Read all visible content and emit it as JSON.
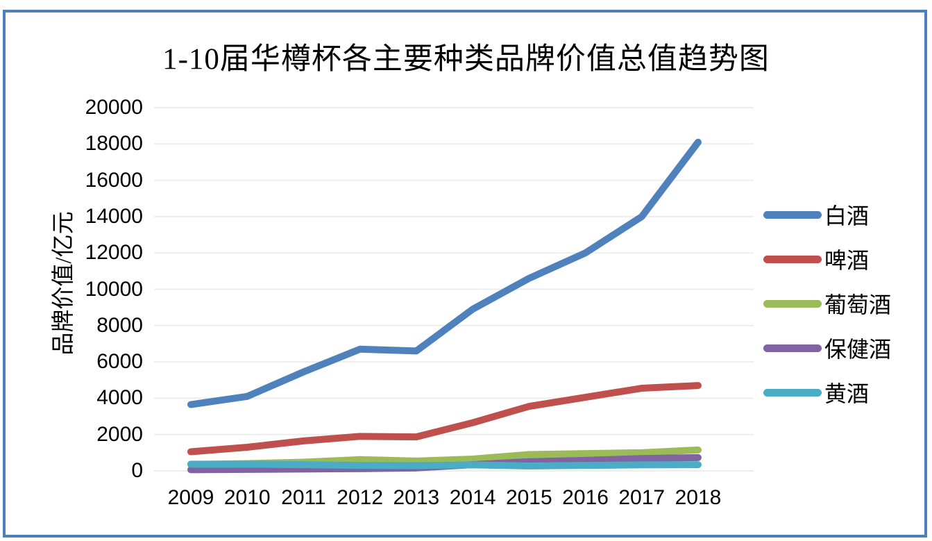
{
  "chart_data": {
    "type": "line",
    "title": "1-10届华樽杯各主要种类品牌价值总值趋势图",
    "ylabel": "品牌价值/亿元",
    "xlabel": "",
    "categories": [
      "2009",
      "2010",
      "2011",
      "2012",
      "2013",
      "2014",
      "2015",
      "2016",
      "2017",
      "2018"
    ],
    "series": [
      {
        "name": "白酒",
        "color": "#4F81BD",
        "values": [
          3650,
          4100,
          5450,
          6700,
          6600,
          8900,
          10600,
          12000,
          14000,
          18100
        ]
      },
      {
        "name": "啤酒",
        "color": "#C0504D",
        "values": [
          1050,
          1300,
          1650,
          1900,
          1870,
          2650,
          3550,
          4050,
          4550,
          4700
        ]
      },
      {
        "name": "葡萄酒",
        "color": "#9BBB59",
        "values": [
          350,
          400,
          480,
          620,
          540,
          650,
          900,
          950,
          1000,
          1150
        ]
      },
      {
        "name": "保健酒",
        "color": "#8064A2",
        "values": [
          60,
          80,
          100,
          120,
          160,
          340,
          510,
          580,
          680,
          730
        ]
      },
      {
        "name": "黄酒",
        "color": "#4BACC6",
        "values": [
          370,
          370,
          340,
          300,
          290,
          330,
          270,
          300,
          330,
          340
        ]
      }
    ],
    "ylim": [
      0,
      20000
    ],
    "yticks": [
      0,
      2000,
      4000,
      6000,
      8000,
      10000,
      12000,
      14000,
      16000,
      18000,
      20000
    ],
    "grid": "horizontal",
    "legend_position": "right",
    "line_width": 10,
    "frame_color": "#4C80BD",
    "gridline_color": "#EDEDED",
    "text_color": "#000000"
  }
}
